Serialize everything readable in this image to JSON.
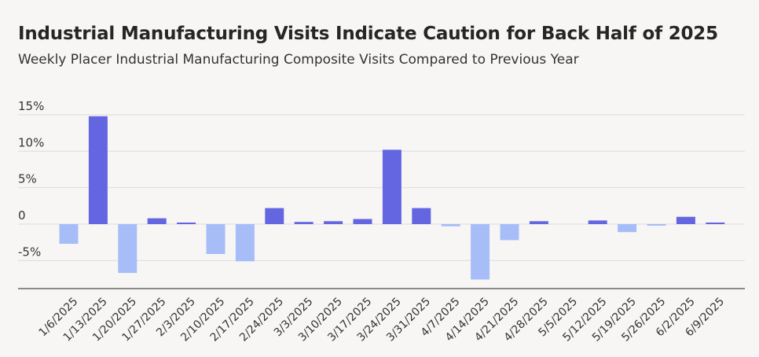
{
  "header": {
    "title": "Industrial Manufacturing Visits Indicate Caution for Back Half of 2025",
    "subtitle": "Weekly Placer Industrial Manufacturing Composite Visits Compared to Previous Year"
  },
  "colors": {
    "positive": "#6366e0",
    "negative": "#a7bdf7",
    "grid": "#dcdcdc",
    "axis": "#8a8a8a"
  },
  "chart_data": {
    "type": "bar",
    "title": "Industrial Manufacturing Visits Indicate Caution for Back Half of 2025",
    "subtitle": "Weekly Placer Industrial Manufacturing Composite Visits Compared to Previous Year",
    "xlabel": "",
    "ylabel": "",
    "ylim": [
      -8.8,
      15
    ],
    "yticks": [
      15,
      10,
      5,
      0,
      -5
    ],
    "ytick_labels": [
      "15%",
      "10%",
      "5%",
      "0",
      "-5%"
    ],
    "grid": true,
    "legend": "none",
    "categories": [
      "1/6/2025",
      "1/13/2025",
      "1/20/2025",
      "1/27/2025",
      "2/3/2025",
      "2/10/2025",
      "2/17/2025",
      "2/24/2025",
      "3/3/2025",
      "3/10/2025",
      "3/17/2025",
      "3/24/2025",
      "3/31/2025",
      "4/7/2025",
      "4/14/2025",
      "4/21/2025",
      "4/28/2025",
      "5/5/2025",
      "5/12/2025",
      "5/19/2025",
      "5/26/2025",
      "6/2/2025",
      "6/9/2025"
    ],
    "values": [
      -2.7,
      14.8,
      -6.7,
      0.8,
      0.1,
      -4.1,
      -5.1,
      2.2,
      0.3,
      0.4,
      0.7,
      10.2,
      2.2,
      -0.3,
      -7.6,
      -2.2,
      0.4,
      0.0,
      0.5,
      -1.1,
      -0.2,
      1.0,
      0.1
    ]
  }
}
